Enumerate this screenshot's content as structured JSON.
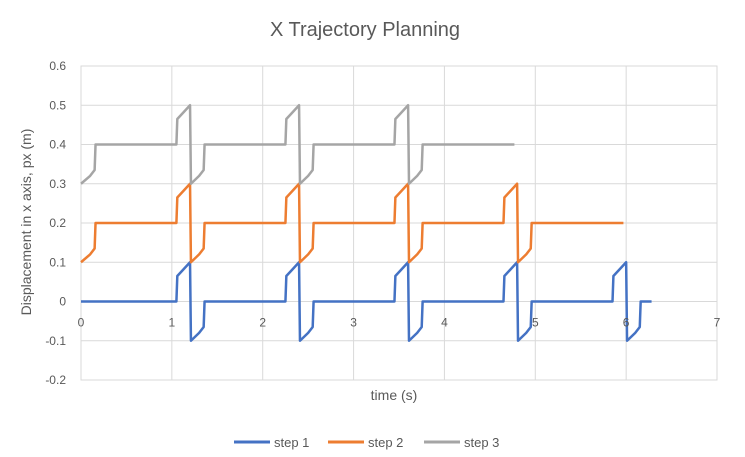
{
  "chart_data": {
    "type": "line",
    "title": "X Trajectory Planning",
    "xlabel": "time (s)",
    "ylabel": "Displacement in x axis, px (m)",
    "xlim": [
      0,
      7
    ],
    "ylim": [
      -0.2,
      0.6
    ],
    "x_ticks": [
      0,
      1,
      2,
      3,
      4,
      5,
      6,
      7
    ],
    "y_ticks": [
      -0.2,
      -0.1,
      0,
      0.1,
      0.2,
      0.3,
      0.4,
      0.5,
      0.6
    ],
    "y_tick_labels": [
      "-0.2",
      "-0.1",
      "0",
      "0.1",
      "0.2",
      "0.3",
      "0.4",
      "0.5",
      "0.6"
    ],
    "grid": true,
    "legend_position": "bottom",
    "series": [
      {
        "name": "step 1",
        "color": "#4472c4",
        "points": [
          [
            0,
            0
          ],
          [
            1.05,
            0
          ],
          [
            1.06,
            0.065
          ],
          [
            1.12,
            0.08
          ],
          [
            1.2,
            0.1
          ],
          [
            1.21,
            -0.1
          ],
          [
            1.3,
            -0.08
          ],
          [
            1.35,
            -0.065
          ],
          [
            1.36,
            0
          ],
          [
            2.25,
            0
          ],
          [
            2.26,
            0.065
          ],
          [
            2.32,
            0.08
          ],
          [
            2.4,
            0.1
          ],
          [
            2.41,
            -0.1
          ],
          [
            2.5,
            -0.08
          ],
          [
            2.55,
            -0.065
          ],
          [
            2.56,
            0
          ],
          [
            3.45,
            0
          ],
          [
            3.46,
            0.065
          ],
          [
            3.52,
            0.08
          ],
          [
            3.6,
            0.1
          ],
          [
            3.61,
            -0.1
          ],
          [
            3.7,
            -0.08
          ],
          [
            3.75,
            -0.065
          ],
          [
            3.76,
            0
          ],
          [
            4.65,
            0
          ],
          [
            4.66,
            0.065
          ],
          [
            4.72,
            0.08
          ],
          [
            4.8,
            0.1
          ],
          [
            4.81,
            -0.1
          ],
          [
            4.9,
            -0.08
          ],
          [
            4.95,
            -0.065
          ],
          [
            4.96,
            0
          ],
          [
            5.85,
            0
          ],
          [
            5.86,
            0.065
          ],
          [
            5.92,
            0.08
          ],
          [
            6.0,
            0.1
          ],
          [
            6.01,
            -0.1
          ],
          [
            6.1,
            -0.08
          ],
          [
            6.15,
            -0.065
          ],
          [
            6.16,
            0
          ],
          [
            6.28,
            0
          ]
        ]
      },
      {
        "name": "step 2",
        "color": "#ed7d31",
        "points": [
          [
            0,
            0.1
          ],
          [
            0.1,
            0.12
          ],
          [
            0.15,
            0.135
          ],
          [
            0.16,
            0.2
          ],
          [
            1.05,
            0.2
          ],
          [
            1.06,
            0.265
          ],
          [
            1.12,
            0.28
          ],
          [
            1.2,
            0.3
          ],
          [
            1.21,
            0.1
          ],
          [
            1.3,
            0.12
          ],
          [
            1.35,
            0.135
          ],
          [
            1.36,
            0.2
          ],
          [
            2.25,
            0.2
          ],
          [
            2.26,
            0.265
          ],
          [
            2.32,
            0.28
          ],
          [
            2.4,
            0.3
          ],
          [
            2.41,
            0.1
          ],
          [
            2.5,
            0.12
          ],
          [
            2.55,
            0.135
          ],
          [
            2.56,
            0.2
          ],
          [
            3.45,
            0.2
          ],
          [
            3.46,
            0.265
          ],
          [
            3.52,
            0.28
          ],
          [
            3.6,
            0.3
          ],
          [
            3.61,
            0.1
          ],
          [
            3.7,
            0.12
          ],
          [
            3.75,
            0.135
          ],
          [
            3.76,
            0.2
          ],
          [
            4.65,
            0.2
          ],
          [
            4.66,
            0.265
          ],
          [
            4.72,
            0.28
          ],
          [
            4.8,
            0.3
          ],
          [
            4.81,
            0.1
          ],
          [
            4.9,
            0.12
          ],
          [
            4.95,
            0.135
          ],
          [
            4.96,
            0.2
          ],
          [
            5.97,
            0.2
          ]
        ]
      },
      {
        "name": "step 3",
        "color": "#a5a5a5",
        "points": [
          [
            0,
            0.3
          ],
          [
            0.1,
            0.32
          ],
          [
            0.15,
            0.335
          ],
          [
            0.16,
            0.4
          ],
          [
            1.05,
            0.4
          ],
          [
            1.06,
            0.465
          ],
          [
            1.12,
            0.48
          ],
          [
            1.2,
            0.5
          ],
          [
            1.21,
            0.3
          ],
          [
            1.3,
            0.32
          ],
          [
            1.35,
            0.335
          ],
          [
            1.36,
            0.4
          ],
          [
            2.25,
            0.4
          ],
          [
            2.26,
            0.465
          ],
          [
            2.32,
            0.48
          ],
          [
            2.4,
            0.5
          ],
          [
            2.41,
            0.3
          ],
          [
            2.5,
            0.32
          ],
          [
            2.55,
            0.335
          ],
          [
            2.56,
            0.4
          ],
          [
            3.45,
            0.4
          ],
          [
            3.46,
            0.465
          ],
          [
            3.52,
            0.48
          ],
          [
            3.6,
            0.5
          ],
          [
            3.61,
            0.3
          ],
          [
            3.7,
            0.32
          ],
          [
            3.75,
            0.335
          ],
          [
            3.76,
            0.4
          ],
          [
            4.77,
            0.4
          ]
        ]
      }
    ]
  }
}
